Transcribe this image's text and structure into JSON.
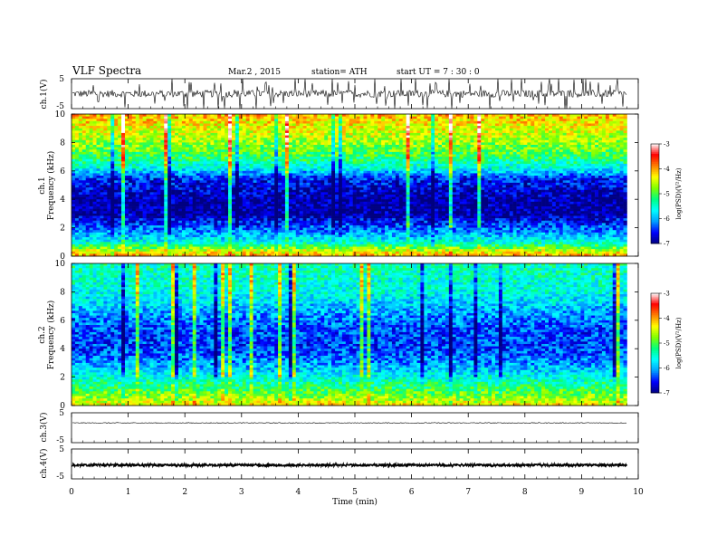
{
  "header": {
    "title": "VLF Spectra",
    "date": "Mar.2 , 2015",
    "station": "station= ATH",
    "start": "start UT = 7 : 30 : 0"
  },
  "chart_data": [
    {
      "type": "line",
      "panel": "ch1-waveform",
      "ylabel": "ch.1(V)",
      "ylim": [
        -5,
        5
      ],
      "yticks": [
        "5",
        "-5"
      ],
      "baseline": 0,
      "amplitude": 1.2,
      "spike_rate": "high",
      "trace_color": "#000000"
    },
    {
      "type": "heatmap",
      "panel": "ch1-spectrogram",
      "ylabel": [
        "ch.1",
        "Frequency (kHz)"
      ],
      "ylim": [
        0,
        10
      ],
      "yticks": [
        "0",
        "2",
        "4",
        "6",
        "8",
        "10"
      ],
      "z_label": "log(PSD)(V²/Hz)",
      "zlim": [
        -7,
        -3
      ],
      "zticks": [
        "-3",
        "-4",
        "-5",
        "-6",
        "-7"
      ],
      "colormap": [
        "#000080",
        "#0000ff",
        "#00a0ff",
        "#00ffff",
        "#00ff80",
        "#80ff00",
        "#ffff00",
        "#ff8000",
        "#ff0000",
        "#ffffff"
      ],
      "profile": [
        {
          "f": 0,
          "v": -4.0
        },
        {
          "f": 0.5,
          "v": -4.7
        },
        {
          "f": 1,
          "v": -5.6
        },
        {
          "f": 2,
          "v": -6.3
        },
        {
          "f": 3,
          "v": -6.9
        },
        {
          "f": 4,
          "v": -6.9
        },
        {
          "f": 5.5,
          "v": -6.5
        },
        {
          "f": 6.2,
          "v": -5.6
        },
        {
          "f": 7,
          "v": -5.1
        },
        {
          "f": 8,
          "v": -4.7
        },
        {
          "f": 9,
          "v": -4.4
        },
        {
          "f": 10,
          "v": -4.1
        }
      ]
    },
    {
      "type": "heatmap",
      "panel": "ch2-spectrogram",
      "ylabel": [
        "ch.2",
        "Frequency (kHz)"
      ],
      "ylim": [
        0,
        10
      ],
      "yticks": [
        "0",
        "2",
        "4",
        "6",
        "8",
        "10"
      ],
      "z_label": "log(PSD)(V²/Hz)",
      "zlim": [
        -7,
        -3
      ],
      "zticks": [
        "-3",
        "-4",
        "-5",
        "-6",
        "-7"
      ],
      "profile": [
        {
          "f": 0,
          "v": -4.3
        },
        {
          "f": 1,
          "v": -5.0
        },
        {
          "f": 2,
          "v": -5.6
        },
        {
          "f": 3,
          "v": -6.1
        },
        {
          "f": 4,
          "v": -6.4
        },
        {
          "f": 5,
          "v": -6.4
        },
        {
          "f": 6,
          "v": -6.2
        },
        {
          "f": 7,
          "v": -5.9
        },
        {
          "f": 8,
          "v": -5.6
        },
        {
          "f": 9,
          "v": -5.5
        },
        {
          "f": 10,
          "v": -5.4
        }
      ]
    },
    {
      "type": "line",
      "panel": "ch3-waveform",
      "ylabel": "ch.3(V)",
      "ylim": [
        -5,
        5
      ],
      "yticks": [
        "5",
        "-5"
      ],
      "baseline": 1.6,
      "amplitude": 0.15,
      "trace_color": "#000000"
    },
    {
      "type": "line",
      "panel": "ch4-waveform",
      "ylabel": "ch.4(V)",
      "ylim": [
        -5,
        5
      ],
      "yticks": [
        "5",
        "-5"
      ],
      "baseline": -0.4,
      "amplitude": 0.3,
      "trace_color": "#000000"
    }
  ],
  "x_axis": {
    "label": "Time (min)",
    "xlim": [
      0,
      10
    ],
    "data_end": 9.8,
    "ticks": [
      "0",
      "1",
      "2",
      "3",
      "4",
      "5",
      "6",
      "7",
      "8",
      "9",
      "10"
    ]
  }
}
